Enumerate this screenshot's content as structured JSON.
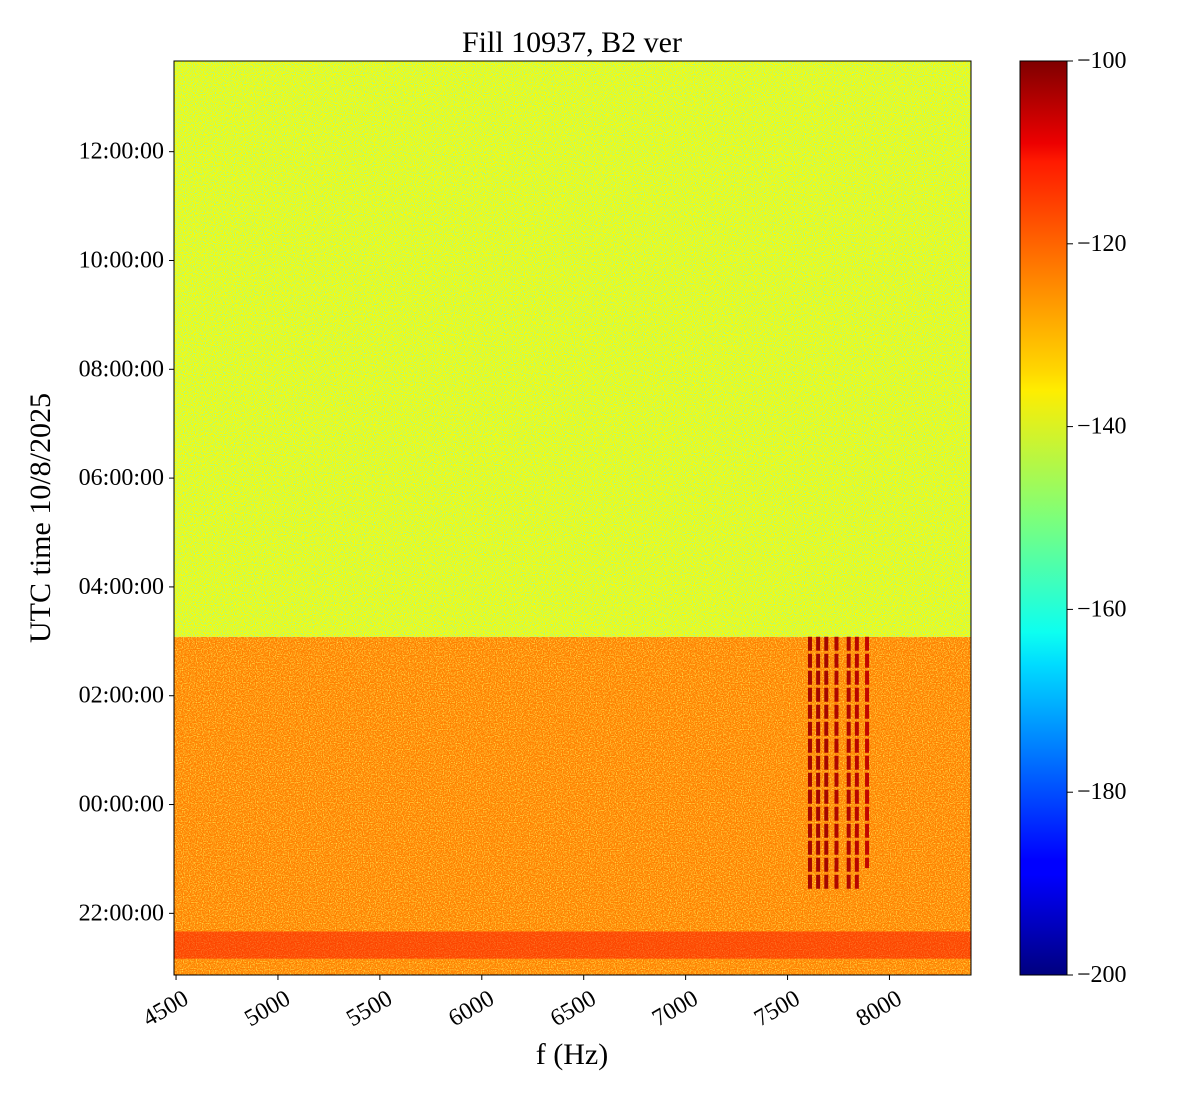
{
  "chart_data": {
    "type": "heatmap",
    "title": "Fill 10937, B2 ver",
    "xlabel": "f (Hz)",
    "ylabel": "UTC time 10/8/2025",
    "xlim": [
      4490,
      8400
    ],
    "ylim": [
      "2025-10-07 20:52:00",
      "2025-10-08 13:40:00"
    ],
    "x_ticks": [
      4500,
      5000,
      5500,
      6000,
      6500,
      7000,
      7500,
      8000
    ],
    "x_tick_labels": [
      "4500",
      "5000",
      "5500",
      "6000",
      "6500",
      "7000",
      "7500",
      "8000"
    ],
    "x_tick_rotation_deg": 30,
    "y_ticks": [
      "22:00:00",
      "00:00:00",
      "02:00:00",
      "04:00:00",
      "06:00:00",
      "08:00:00",
      "10:00:00",
      "12:00:00"
    ],
    "colorbar": {
      "colormap": "jet",
      "range": [
        -200,
        -100
      ],
      "ticks": [
        -100,
        -120,
        -140,
        -160,
        -180,
        -200
      ],
      "tick_labels": [
        "−100",
        "−120",
        "−140",
        "−160",
        "−180",
        "−200"
      ],
      "placement": "right"
    },
    "regions": [
      {
        "time_start": "2025-10-07 20:52:00",
        "time_end": "2025-10-08 03:05:00",
        "mean_level": -125
      },
      {
        "time_start": "2025-10-08 03:05:00",
        "time_end": "2025-10-08 13:40:00",
        "mean_level": -137
      }
    ],
    "band_near_start": {
      "time_start": "2025-10-07 21:10:00",
      "time_end": "2025-10-07 21:40:00",
      "level": -112
    },
    "lines": [
      {
        "f": 7610,
        "time_start": "2025-10-07 22:25:00",
        "time_end": "2025-10-08 03:05:00",
        "level": -103
      },
      {
        "f": 7650,
        "time_start": "2025-10-07 22:25:00",
        "time_end": "2025-10-08 03:05:00",
        "level": -103
      },
      {
        "f": 7690,
        "time_start": "2025-10-07 22:25:00",
        "time_end": "2025-10-08 03:05:00",
        "level": -103
      },
      {
        "f": 7740,
        "time_start": "2025-10-07 22:25:00",
        "time_end": "2025-10-08 03:05:00",
        "level": -104
      },
      {
        "f": 7800,
        "time_start": "2025-10-07 22:25:00",
        "time_end": "2025-10-08 03:05:00",
        "level": -104
      },
      {
        "f": 7840,
        "time_start": "2025-10-07 22:25:00",
        "time_end": "2025-10-08 03:05:00",
        "level": -105
      },
      {
        "f": 7890,
        "time_start": "2025-10-07 22:50:00",
        "time_end": "2025-10-08 03:05:00",
        "level": -106
      }
    ]
  }
}
